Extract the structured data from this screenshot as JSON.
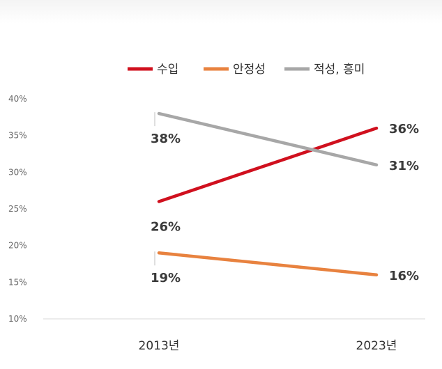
{
  "chart_data": {
    "type": "line",
    "title": "",
    "xlabel": "",
    "ylabel": "",
    "categories": [
      "2013년",
      "2023년"
    ],
    "ylim": [
      10,
      40
    ],
    "ytick_step": 5,
    "ytick_suffix": "%",
    "grid": false,
    "legend_position": "top",
    "series": [
      {
        "name": "수입",
        "values": [
          26,
          36
        ],
        "labels": [
          "26%",
          "36%"
        ],
        "color": "#d0101e"
      },
      {
        "name": "안정성",
        "values": [
          19,
          16
        ],
        "labels": [
          "19%",
          "16%"
        ],
        "color": "#e8823f"
      },
      {
        "name": "적성, 흥미",
        "values": [
          38,
          31
        ],
        "labels": [
          "38%",
          "31%"
        ],
        "color": "#a7a7a7"
      }
    ]
  }
}
